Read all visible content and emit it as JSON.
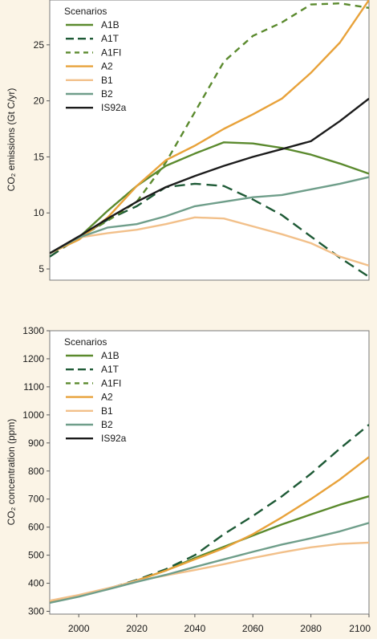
{
  "chart_data": [
    {
      "type": "line",
      "xlabel": "",
      "ylabel": "CO₂ emissions (Gt C/yr)",
      "xlim": [
        1990,
        2100
      ],
      "ylim": [
        4,
        29
      ],
      "yticks": [
        5,
        10,
        15,
        20,
        25
      ],
      "legend": {
        "title": "Scenarios",
        "placement": "top-left"
      },
      "grid": false,
      "series": [
        {
          "name": "A1B",
          "color": "#5b8a2e",
          "dash": "solid",
          "x": [
            1990,
            2000,
            2010,
            2020,
            2030,
            2040,
            2050,
            2060,
            2070,
            2080,
            2090,
            2100
          ],
          "y": [
            6.4,
            7.8,
            10.2,
            12.4,
            14.2,
            15.3,
            16.3,
            16.2,
            15.8,
            15.2,
            14.4,
            13.5
          ]
        },
        {
          "name": "A1T",
          "color": "#1e5a36",
          "dash": "long-dash",
          "x": [
            1990,
            2000,
            2010,
            2020,
            2030,
            2040,
            2050,
            2060,
            2070,
            2080,
            2090,
            2100
          ],
          "y": [
            6.1,
            7.8,
            9.4,
            10.6,
            12.3,
            12.6,
            12.4,
            11.2,
            9.8,
            7.9,
            6.0,
            4.3
          ]
        },
        {
          "name": "A1FI",
          "color": "#5b8a2e",
          "dash": "dash",
          "x": [
            1990,
            2000,
            2010,
            2020,
            2030,
            2040,
            2050,
            2060,
            2070,
            2080,
            2090,
            2100
          ],
          "y": [
            6.4,
            7.8,
            9.3,
            11.0,
            14.5,
            19.0,
            23.5,
            25.8,
            27.0,
            28.6,
            28.7,
            28.3
          ]
        },
        {
          "name": "A2",
          "color": "#e8a23a",
          "dash": "solid",
          "x": [
            1990,
            2000,
            2010,
            2020,
            2030,
            2040,
            2050,
            2060,
            2070,
            2080,
            2090,
            2100
          ],
          "y": [
            6.4,
            7.6,
            9.6,
            12.4,
            14.7,
            16.0,
            17.5,
            18.8,
            20.2,
            22.5,
            25.2,
            29.0
          ]
        },
        {
          "name": "B1",
          "color": "#f2c08a",
          "dash": "solid",
          "x": [
            1990,
            2000,
            2010,
            2020,
            2030,
            2040,
            2050,
            2060,
            2070,
            2080,
            2090,
            2100
          ],
          "y": [
            6.4,
            7.8,
            8.2,
            8.5,
            9.0,
            9.6,
            9.5,
            8.8,
            8.1,
            7.3,
            6.1,
            5.3
          ]
        },
        {
          "name": "B2",
          "color": "#6f9e8a",
          "dash": "solid",
          "x": [
            1990,
            2000,
            2010,
            2020,
            2030,
            2040,
            2050,
            2060,
            2070,
            2080,
            2090,
            2100
          ],
          "y": [
            6.4,
            7.8,
            8.7,
            9.0,
            9.7,
            10.6,
            11.0,
            11.4,
            11.6,
            12.1,
            12.6,
            13.2
          ]
        },
        {
          "name": "IS92a",
          "color": "#1b1b1b",
          "dash": "solid",
          "x": [
            1990,
            2000,
            2010,
            2020,
            2030,
            2040,
            2050,
            2060,
            2070,
            2080,
            2090,
            2100
          ],
          "y": [
            6.4,
            7.9,
            9.5,
            11.0,
            12.3,
            13.3,
            14.2,
            15.0,
            15.7,
            16.4,
            18.2,
            20.2
          ]
        }
      ]
    },
    {
      "type": "line",
      "xlabel": "",
      "ylabel": "CO₂ concentration (ppm)",
      "xlim": [
        1990,
        2100
      ],
      "ylim": [
        290,
        1300
      ],
      "xticks": [
        2000,
        2020,
        2040,
        2060,
        2080,
        2100
      ],
      "yticks": [
        300,
        400,
        500,
        600,
        700,
        800,
        900,
        1000,
        1100,
        1200,
        1300
      ],
      "legend": {
        "title": "Scenarios",
        "placement": "top-left"
      },
      "grid": false,
      "series": [
        {
          "name": "A1B",
          "color": "#5b8a2e",
          "dash": "solid",
          "x": [
            1990,
            2000,
            2010,
            2020,
            2030,
            2040,
            2050,
            2060,
            2070,
            2080,
            2090,
            2100
          ],
          "y": [
            333,
            355,
            380,
            410,
            445,
            490,
            530,
            570,
            610,
            645,
            680,
            710
          ]
        },
        {
          "name": "A1T",
          "color": "#1e5a36",
          "dash": "long-dash",
          "x": [
            1990,
            2000,
            2010,
            2020,
            2030,
            2040,
            2050,
            2060,
            2070,
            2080,
            2090,
            2100
          ],
          "y": [
            333,
            355,
            380,
            412,
            450,
            500,
            575,
            640,
            710,
            790,
            880,
            965
          ]
        },
        {
          "name": "A1FI",
          "color": "#5b8a2e",
          "dash": "dash",
          "x": [],
          "y": []
        },
        {
          "name": "A2",
          "color": "#e8a23a",
          "dash": "solid",
          "x": [
            1990,
            2000,
            2010,
            2020,
            2030,
            2040,
            2050,
            2060,
            2070,
            2080,
            2090,
            2100
          ],
          "y": [
            333,
            355,
            380,
            410,
            445,
            485,
            525,
            575,
            635,
            700,
            770,
            850
          ]
        },
        {
          "name": "B1",
          "color": "#f2c08a",
          "dash": "solid",
          "x": [
            1990,
            2000,
            2010,
            2020,
            2030,
            2040,
            2050,
            2060,
            2070,
            2080,
            2090,
            2100
          ],
          "y": [
            338,
            358,
            382,
            408,
            428,
            447,
            468,
            490,
            510,
            528,
            540,
            545
          ]
        },
        {
          "name": "B2",
          "color": "#6f9e8a",
          "dash": "solid",
          "x": [
            1990,
            2000,
            2010,
            2020,
            2030,
            2040,
            2050,
            2060,
            2070,
            2080,
            2090,
            2100
          ],
          "y": [
            330,
            352,
            378,
            405,
            430,
            458,
            485,
            512,
            538,
            560,
            585,
            615
          ]
        },
        {
          "name": "IS92a",
          "color": "#1b1b1b",
          "dash": "solid",
          "x": [],
          "y": []
        }
      ]
    }
  ]
}
